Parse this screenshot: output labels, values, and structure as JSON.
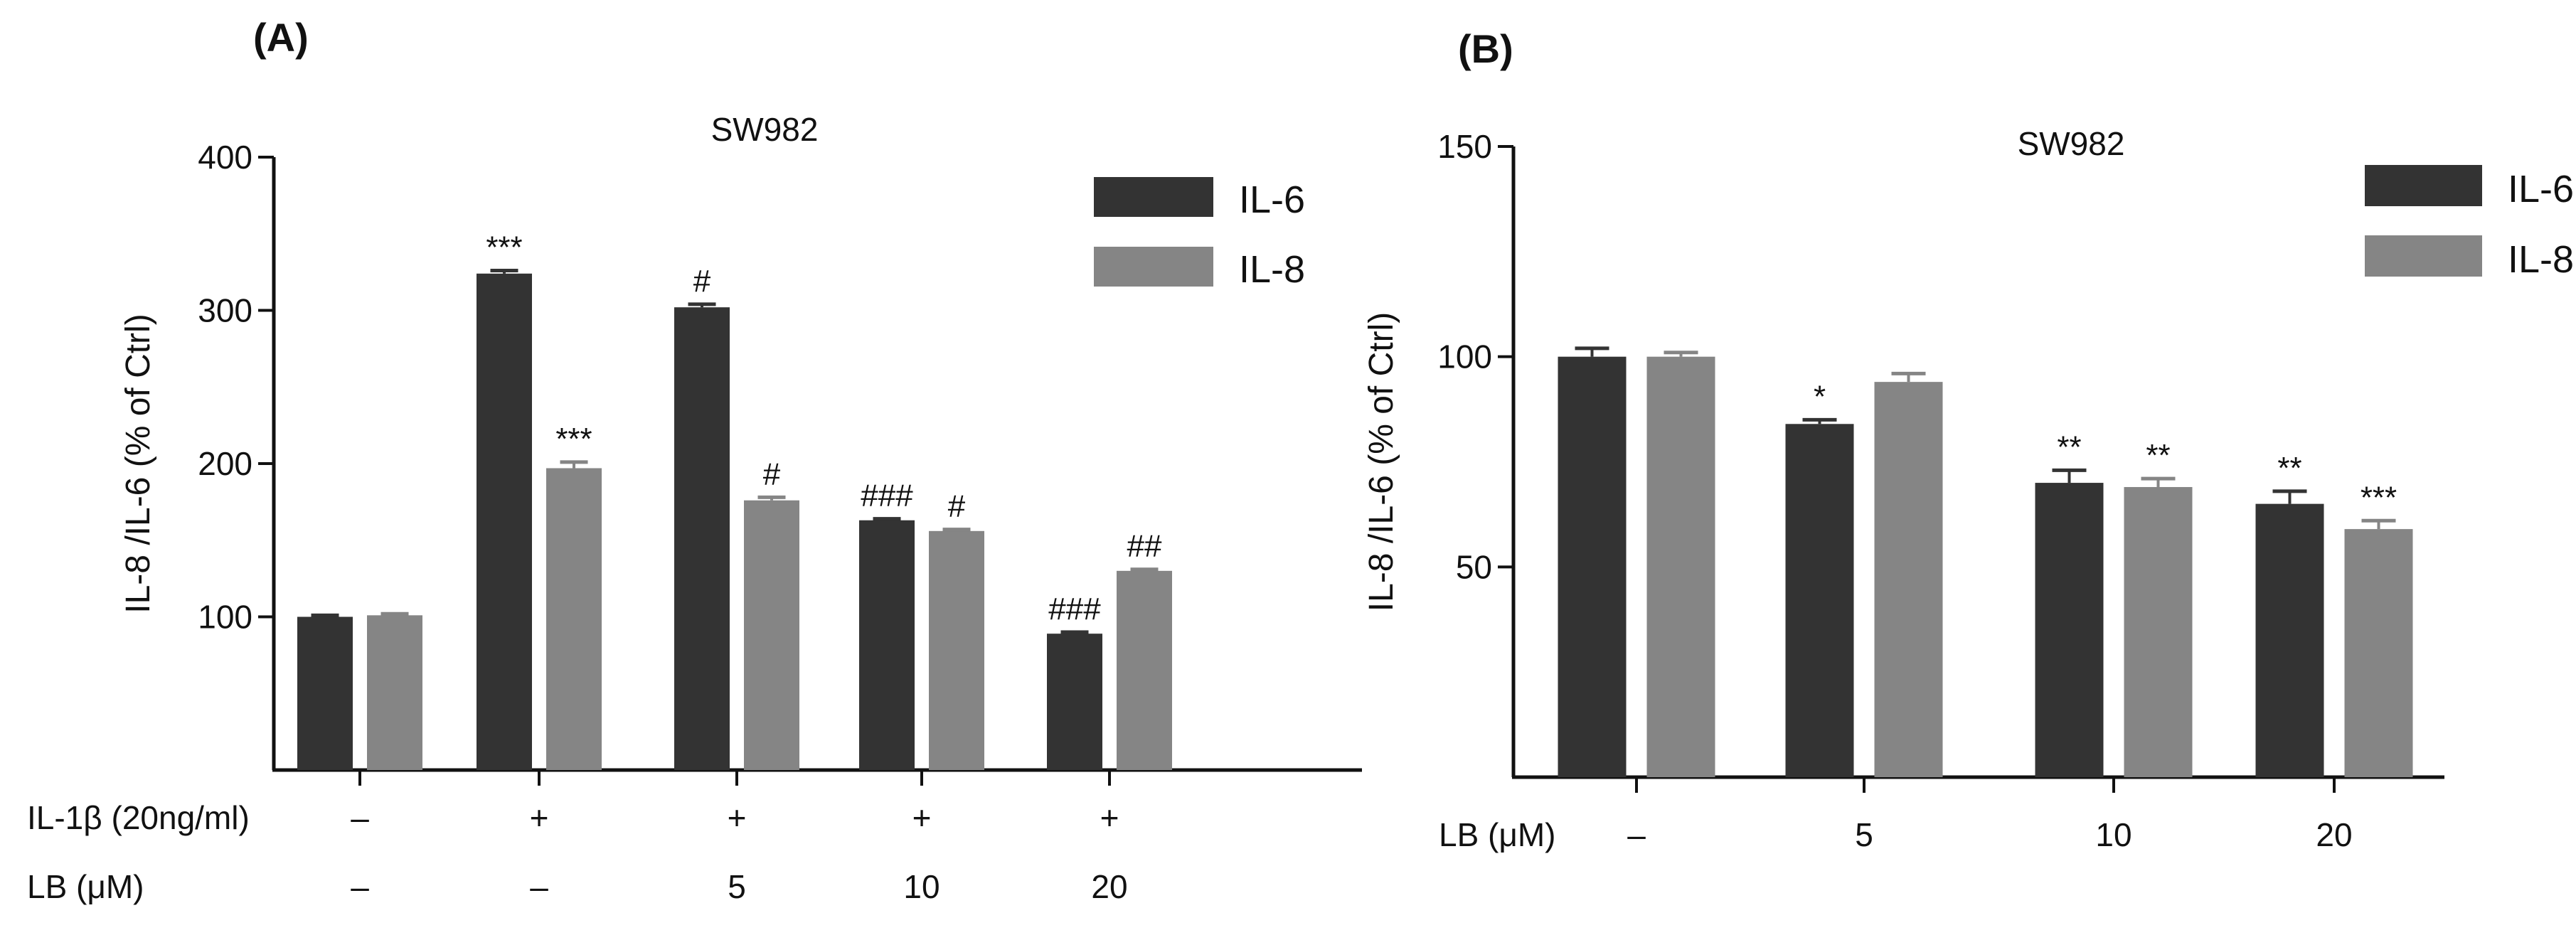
{
  "chart_data": [
    {
      "panel": "(A)",
      "type": "bar",
      "title": "SW982",
      "ylabel": "IL-8 /IL-6 (% of Ctrl)",
      "xlabel": "",
      "ylim": [
        0,
        400
      ],
      "yticks": [
        100,
        200,
        300,
        400
      ],
      "legend_position": "top-right",
      "colors": {
        "IL-6": "#333333",
        "IL-8": "#858585"
      },
      "series": [
        {
          "name": "IL-6",
          "values": [
            100,
            324,
            302,
            163,
            89
          ],
          "errors": [
            1,
            2,
            2,
            1,
            1
          ],
          "significance": [
            "",
            "***",
            "#",
            "###",
            "###"
          ]
        },
        {
          "name": "IL-8",
          "values": [
            101,
            197,
            176,
            156,
            130
          ],
          "errors": [
            1,
            4,
            2,
            1,
            1
          ],
          "significance": [
            "",
            "***",
            "#",
            "#",
            "##"
          ]
        }
      ],
      "treatment_rows": [
        {
          "label": "IL-1β (20ng/ml)",
          "values": [
            "–",
            "+",
            "+",
            "+",
            "+"
          ]
        },
        {
          "label": "LB (μM)",
          "values": [
            "–",
            "–",
            "5",
            "10",
            "20"
          ]
        }
      ]
    },
    {
      "panel": "(B)",
      "type": "bar",
      "title": "SW982",
      "ylabel": "IL-8 /IL-6 (% of Ctrl)",
      "xlabel": "",
      "ylim": [
        0,
        150
      ],
      "yticks": [
        50,
        100,
        150
      ],
      "legend_position": "top-right",
      "colors": {
        "IL-6": "#333333",
        "IL-8": "#858585"
      },
      "series": [
        {
          "name": "IL-6",
          "values": [
            100,
            84,
            70,
            65
          ],
          "errors": [
            2,
            1,
            3,
            3
          ],
          "significance": [
            "",
            "*",
            "**",
            "**"
          ]
        },
        {
          "name": "IL-8",
          "values": [
            100,
            94,
            69,
            59
          ],
          "errors": [
            1,
            2,
            2,
            2
          ],
          "significance": [
            "",
            "",
            "**",
            "***"
          ]
        }
      ],
      "treatment_rows": [
        {
          "label": "LB (μM)",
          "values": [
            "–",
            "5",
            "10",
            "20"
          ]
        }
      ]
    }
  ]
}
